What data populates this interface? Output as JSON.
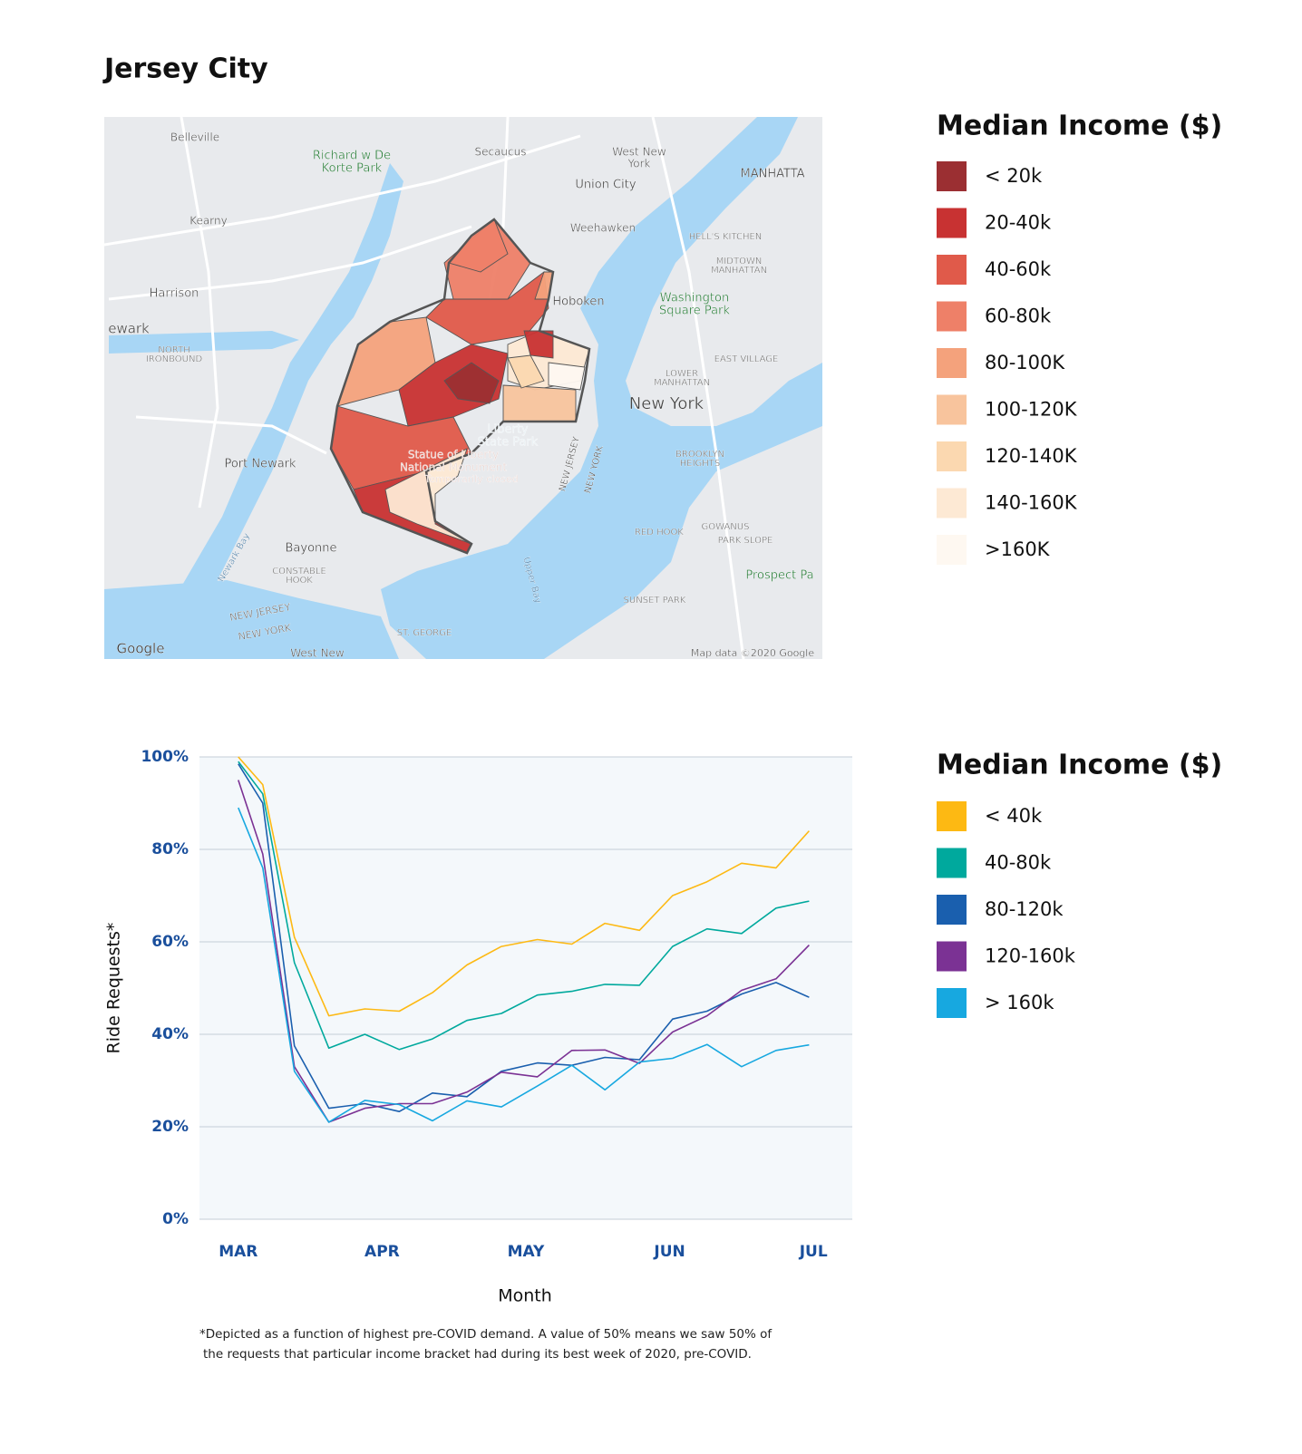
{
  "title": "Jersey City",
  "map": {
    "labels": [
      "Belleville",
      "Richard w De",
      "Korte Park",
      "Secaucus",
      "West New",
      "York",
      "Union City",
      "MANHATTA",
      "Kearny",
      "Weehawken",
      "HELL'S KITCHEN",
      "MIDTOWN",
      "MANHATTAN",
      "Harrison",
      "Hoboken",
      "Washington",
      "Square Park",
      "ewark",
      "NORTH",
      "IRONBOUND",
      "EAST VILLAGE",
      "LOWER",
      "MANHATTAN",
      "New York",
      "Liberty",
      "State Park",
      "Port Newark",
      "BROOKLYN",
      "HEIGHTS",
      "Bayonne",
      "CONSTABLE",
      "HOOK",
      "RED HOOK",
      "GOWANUS",
      "PARK SLOPE",
      "Prospect Pa",
      "SUNSET PARK",
      "NEW JERSEY",
      "NEW YORK",
      "ST. GEORGE",
      "West New",
      "Google",
      "Map data ©2020 Google",
      "Newark Bay",
      "Upper Bay",
      "Statue of Liberty",
      "National Monument",
      "Temporarily closed",
      "NEW JERSEY",
      "NEW YORK"
    ]
  },
  "map_legend": {
    "title": "Median Income ($)",
    "items": [
      {
        "label": "< 20k",
        "color": "#9b2f32"
      },
      {
        "label": "20-40k",
        "color": "#c83232"
      },
      {
        "label": "40-60k",
        "color": "#e05a4a"
      },
      {
        "label": "60-80k",
        "color": "#ee8068"
      },
      {
        "label": "80-100K",
        "color": "#f4a27c"
      },
      {
        "label": "100-120K",
        "color": "#f8c49d"
      },
      {
        "label": "120-140K",
        "color": "#fbd8b0"
      },
      {
        "label": "140-160K",
        "color": "#fde9d4"
      },
      {
        "label": ">160K",
        "color": "#fef8f1"
      }
    ]
  },
  "chart_data": {
    "type": "line",
    "xlabel": "Month",
    "ylabel": "Ride Requests*",
    "legend_title": "Median Income ($)",
    "footnote": [
      "*Depicted as a function of highest pre-COVID demand. A value of 50% means we saw 50% of",
      "the requests that particular income bracket had during its best week of 2020, pre-COVID."
    ],
    "x": [
      3.0,
      3.17,
      3.39,
      3.63,
      3.88,
      4.12,
      4.35,
      4.59,
      4.83,
      5.08,
      5.32,
      5.55,
      5.79,
      6.02,
      6.26,
      6.5,
      6.74,
      6.97
    ],
    "xlim": [
      2.73,
      7.27
    ],
    "xticks": [
      {
        "value": 3,
        "label": "MAR"
      },
      {
        "value": 4,
        "label": "APR"
      },
      {
        "value": 5,
        "label": "MAY"
      },
      {
        "value": 6,
        "label": "JUN"
      },
      {
        "value": 7,
        "label": "JUL"
      }
    ],
    "ylim": [
      0,
      100
    ],
    "yticks": [
      {
        "value": 0,
        "label": "0%"
      },
      {
        "value": 20,
        "label": "20%"
      },
      {
        "value": 40,
        "label": "40%"
      },
      {
        "value": 60,
        "label": "60%"
      },
      {
        "value": 80,
        "label": "80%"
      },
      {
        "value": 100,
        "label": "100%"
      }
    ],
    "grid": true,
    "series": [
      {
        "name": "< 40k",
        "color": "#fdb913",
        "values": [
          100,
          94,
          61,
          44,
          45.5,
          45,
          49,
          55,
          59,
          60.5,
          59.5,
          64,
          62.5,
          70,
          73,
          77,
          76,
          84
        ]
      },
      {
        "name": "40-80k",
        "color": "#00a99d",
        "values": [
          99,
          92,
          55.5,
          37,
          40,
          36.7,
          39,
          43,
          44.5,
          48.5,
          49.3,
          50.8,
          50.6,
          59,
          62.8,
          61.8,
          67.3,
          68.8
        ]
      },
      {
        "name": "80-120k",
        "color": "#1a5fae",
        "values": [
          98.5,
          90,
          37.5,
          24,
          25,
          23.3,
          27.3,
          26.5,
          32,
          33.8,
          33.3,
          35,
          34.5,
          43.3,
          45,
          48.7,
          51.2,
          48
        ]
      },
      {
        "name": "120-160k",
        "color": "#7b3294",
        "values": [
          95,
          79,
          33,
          21,
          24,
          25,
          25,
          27.5,
          31.8,
          30.8,
          36.5,
          36.6,
          33.7,
          40.5,
          44,
          49.5,
          52,
          59.3
        ]
      },
      {
        "name": "> 160k",
        "color": "#17a8e0",
        "values": [
          89,
          76,
          32,
          21,
          25.7,
          24.8,
          21.3,
          25.6,
          24.3,
          28.8,
          33.3,
          28,
          34,
          34.8,
          37.8,
          33,
          36.5,
          37.7
        ]
      }
    ]
  }
}
